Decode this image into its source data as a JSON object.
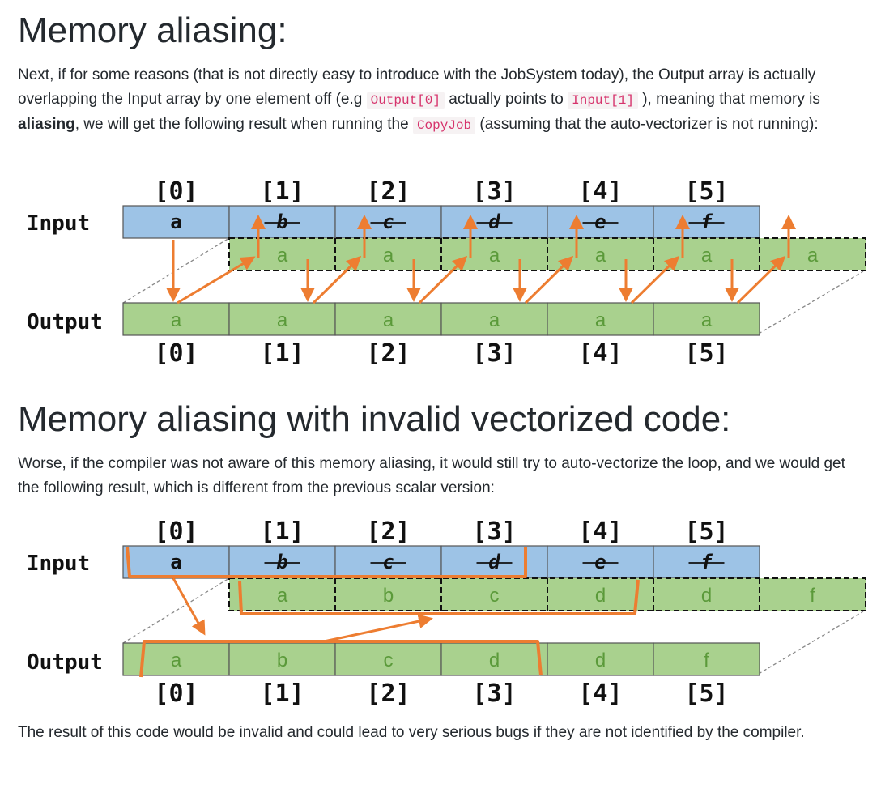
{
  "section1": {
    "heading": "Memory aliasing:",
    "para": {
      "t1": "Next, if for some reasons (that is not directly easy to introduce with the JobSystem today), the Output array is actually overlapping the Input array by one element off (e.g ",
      "code1": "Output[0]",
      "t2": " actually points to ",
      "code2": "Input[1]",
      "t3": " ), meaning that memory is ",
      "bold": "aliasing",
      "t4": ", we will get the following result when running the ",
      "code3": "CopyJob",
      "t5": " (assuming that the auto-vectorizer is not running):"
    },
    "diagram": {
      "input_label": "Input",
      "output_label": "Output",
      "indices": [
        "[0]",
        "[1]",
        "[2]",
        "[3]",
        "[4]",
        "[5]"
      ],
      "input_cells": [
        "a",
        "b",
        "c",
        "d",
        "e",
        "f"
      ],
      "overlay_cells": [
        "a",
        "a",
        "a",
        "a",
        "a",
        "a"
      ],
      "output_cells": [
        "a",
        "a",
        "a",
        "a",
        "a",
        "a"
      ]
    }
  },
  "section2": {
    "heading": "Memory aliasing with invalid vectorized code:",
    "para": "Worse, if the compiler was not aware of this memory aliasing, it would still try to auto-vectorize the loop, and we would get the following result, which is different from the previous scalar version:",
    "diagram": {
      "input_label": "Input",
      "output_label": "Output",
      "indices": [
        "[0]",
        "[1]",
        "[2]",
        "[3]",
        "[4]",
        "[5]"
      ],
      "input_cells": [
        "a",
        "b",
        "c",
        "d",
        "e",
        "f"
      ],
      "overlay_cells": [
        "a",
        "b",
        "c",
        "d",
        "d",
        "f"
      ],
      "output_cells": [
        "a",
        "b",
        "c",
        "d",
        "d",
        "f"
      ]
    }
  },
  "closing": "The result of this code would be invalid and could lead to very serious bugs if they are not identified by the compiler.",
  "colors": {
    "input_fill": "#9dc3e6",
    "output_fill": "#a9d18e",
    "arrow": "#ed7d31",
    "overlay_text": "#5b9a3a"
  }
}
